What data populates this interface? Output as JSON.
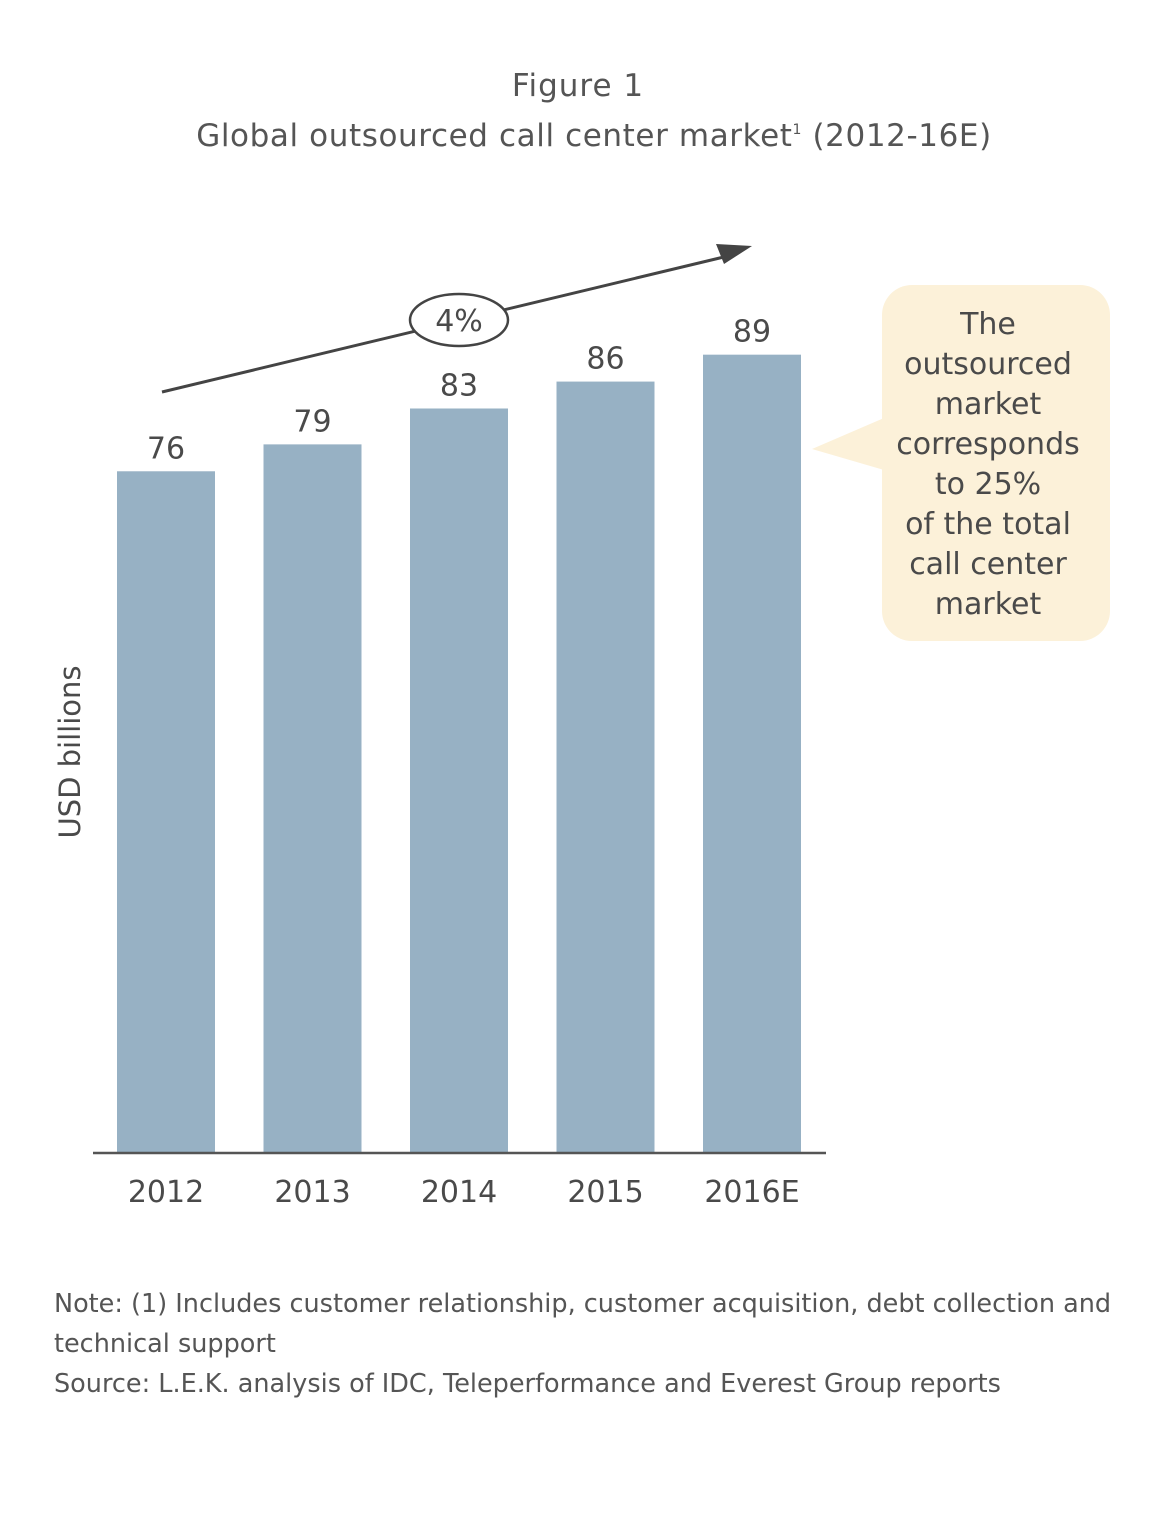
{
  "chart_data": {
    "type": "bar",
    "figure_label": "Figure 1",
    "title": "Global outsourced call center market",
    "title_superscript": "1",
    "title_suffix": " (2012-16E)",
    "categories": [
      "2012",
      "2013",
      "2014",
      "2015",
      "2016E"
    ],
    "values": [
      76,
      79,
      83,
      86,
      89
    ],
    "data_labels": [
      "76",
      "79",
      "83",
      "86",
      "89"
    ],
    "ylabel": "USD billions",
    "ylim": [
      0,
      89
    ],
    "grid": false,
    "bar_color": "#97b1c4",
    "growth_annotation": "4%",
    "callout": {
      "lines": [
        "The",
        "outsourced",
        "market",
        "corresponds",
        "to 25%",
        "of the total",
        "call center",
        "market"
      ],
      "color": "#fcf1d9"
    }
  },
  "notes": {
    "note": "Note: (1) Includes customer relationship, customer acquisition, debt collection and technical support",
    "source": "Source: L.E.K. analysis of IDC, Teleperformance and Everest Group reports"
  }
}
